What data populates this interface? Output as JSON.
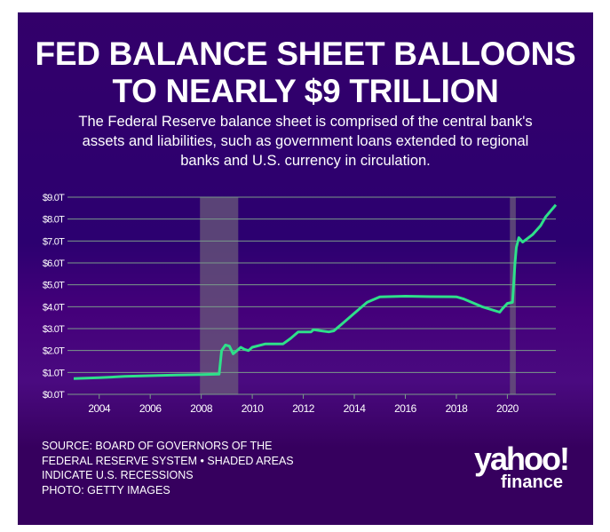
{
  "title_lines": [
    "FED BALANCE SHEET BALLOONS",
    "TO NEARLY $9 TRILLION"
  ],
  "subtitle_lines": [
    "The Federal Reserve balance sheet is comprised of the central bank's",
    "assets and liabilities, such as government loans extended to regional",
    "banks and U.S. currency in circulation."
  ],
  "source_lines": [
    "SOURCE: BOARD OF GOVERNORS OF THE",
    "FEDERAL RESERVE SYSTEM • SHADED AREAS",
    "INDICATE U.S. RECESSIONS",
    "PHOTO: GETTY IMAGES"
  ],
  "logo": {
    "brand": "yahoo!",
    "sub": "finance"
  },
  "colors": {
    "background": "#36005e",
    "line": "#2ee08a",
    "grid": "#7a9a8a",
    "recession": "#6a5a7a"
  },
  "chart_data": {
    "type": "line",
    "title": "FED BALANCE SHEET BALLOONS TO NEARLY $9 TRILLION",
    "xlabel": "",
    "ylabel": "",
    "xlim": [
      2003,
      2021.9
    ],
    "ylim": [
      0,
      9
    ],
    "x_ticks": [
      "2004",
      "2006",
      "2008",
      "2010",
      "2012",
      "2014",
      "2016",
      "2018",
      "2020"
    ],
    "y_ticks": [
      "$0.0T",
      "$1.0T",
      "$2.0T",
      "$3.0T",
      "$4.0T",
      "$5.0T",
      "$6.0T",
      "$7.0T",
      "$8.0T",
      "$9.0T"
    ],
    "grid": true,
    "recessions": [
      [
        2007.95,
        2009.45
      ],
      [
        2020.1,
        2020.33
      ]
    ],
    "series": [
      {
        "x": [
          2003.0,
          2004,
          2005,
          2006,
          2007,
          2008,
          2008.7,
          2008.8,
          2008.95,
          2009.1,
          2009.25,
          2009.4,
          2009.55,
          2009.7,
          2009.85,
          2010,
          2010.5,
          2011,
          2011.2,
          2011.5,
          2011.8,
          2012.3,
          2012.4,
          2012.7,
          2013,
          2013.2,
          2013.5,
          2014,
          2014.5,
          2015,
          2016,
          2017,
          2018,
          2018.3,
          2019,
          2019.7,
          2019.8,
          2020.0,
          2020.2,
          2020.3,
          2020.35,
          2020.45,
          2020.6,
          2021,
          2021.3,
          2021.5,
          2021.9
        ],
        "y": [
          0.72,
          0.76,
          0.82,
          0.85,
          0.88,
          0.9,
          0.92,
          2.0,
          2.25,
          2.2,
          1.85,
          2.0,
          2.15,
          2.05,
          2.0,
          2.15,
          2.3,
          2.3,
          2.3,
          2.55,
          2.85,
          2.85,
          2.95,
          2.9,
          2.85,
          2.9,
          3.2,
          3.7,
          4.2,
          4.45,
          4.48,
          4.46,
          4.45,
          4.35,
          4.0,
          3.75,
          3.9,
          4.15,
          4.2,
          6.0,
          6.7,
          7.15,
          6.95,
          7.3,
          7.7,
          8.1,
          8.65
        ]
      }
    ]
  }
}
